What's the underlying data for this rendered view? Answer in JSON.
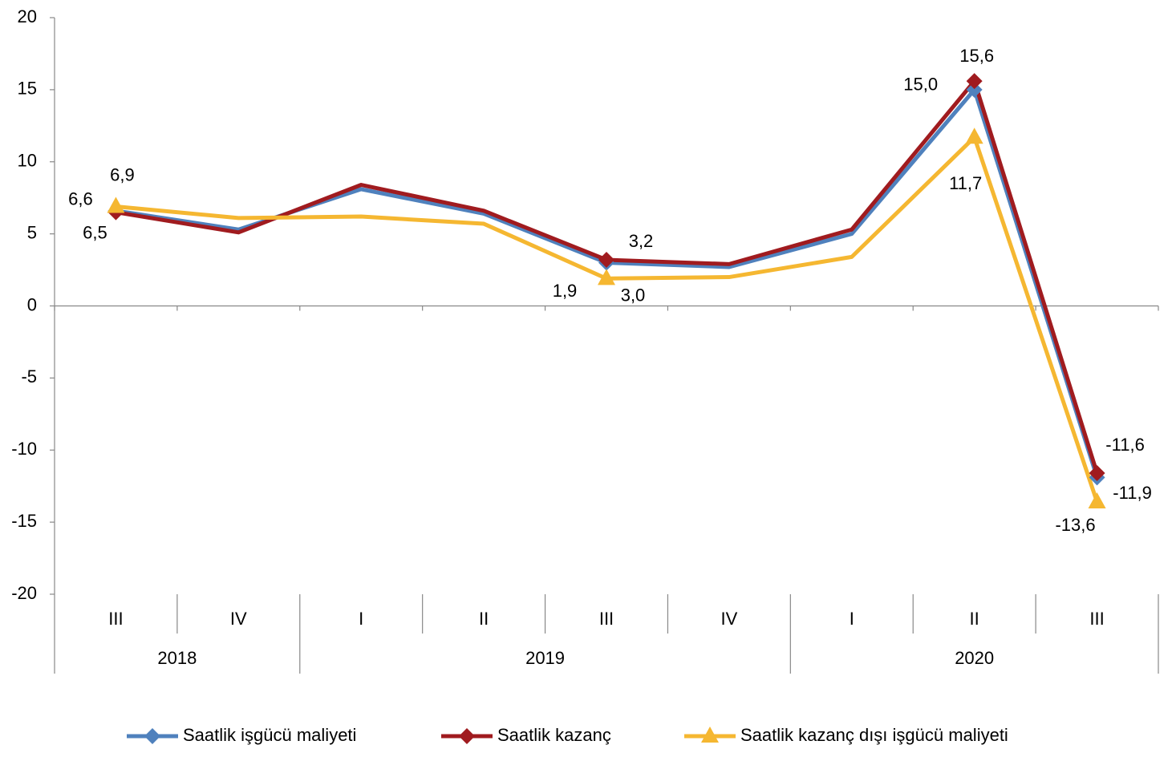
{
  "chart_data": {
    "type": "line",
    "categories": [
      "III",
      "IV",
      "I",
      "II",
      "III",
      "IV",
      "I",
      "II",
      "III"
    ],
    "groups": [
      {
        "label": "2018",
        "start": 0,
        "end": 1
      },
      {
        "label": "2019",
        "start": 2,
        "end": 5
      },
      {
        "label": "2020",
        "start": 6,
        "end": 8
      }
    ],
    "series": [
      {
        "name": "Saatlik işgücü maliyeti",
        "color": "#4f81bd",
        "marker": "diamond",
        "values": [
          6.6,
          5.3,
          8.1,
          6.4,
          3.0,
          2.7,
          5.0,
          15.0,
          -11.9
        ],
        "value_labels": [
          "6,6",
          null,
          null,
          null,
          "3,0",
          null,
          null,
          "15,0",
          "-11,9"
        ]
      },
      {
        "name": "Saatlik kazanç",
        "color": "#a01b1f",
        "marker": "diamond",
        "values": [
          6.5,
          5.1,
          8.4,
          6.6,
          3.2,
          2.9,
          5.3,
          15.6,
          -11.6
        ],
        "value_labels": [
          "6,5",
          null,
          null,
          null,
          "3,2",
          null,
          null,
          "15,6",
          "-11,6"
        ]
      },
      {
        "name": "Saatlik kazanç dışı işgücü maliyeti",
        "color": "#f5b731",
        "marker": "triangle",
        "values": [
          6.9,
          6.1,
          6.2,
          5.7,
          1.9,
          2.0,
          3.4,
          11.7,
          -13.6
        ],
        "value_labels": [
          "6,9",
          null,
          null,
          null,
          "1,9",
          null,
          null,
          "11,7",
          "-13,6"
        ]
      }
    ],
    "ylim": [
      -20,
      20
    ],
    "yticks": [
      -20,
      -15,
      -10,
      -5,
      0,
      5,
      10,
      15,
      20
    ],
    "legend": "bottom"
  }
}
